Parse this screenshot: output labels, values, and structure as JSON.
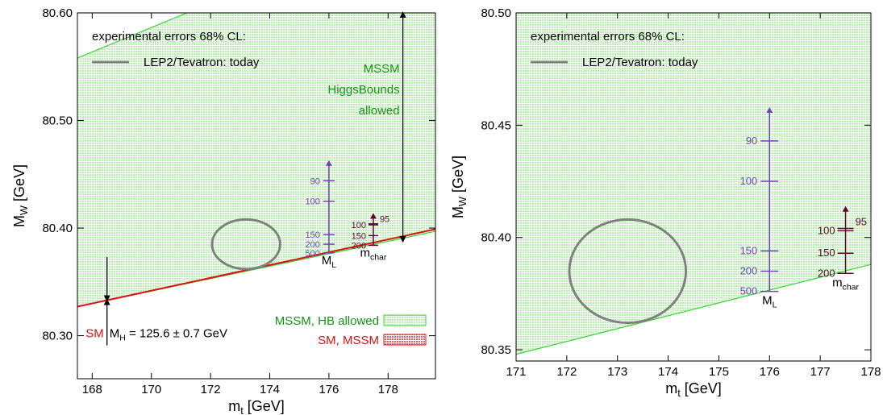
{
  "colors": {
    "allowed_fill": "#c8f2c0",
    "allowed_edge": "#30d830",
    "sm_band": "#e01010",
    "ellipse": "#808080",
    "purple": "#7040c0",
    "maroon": "#5a0a2a",
    "green_text": "#149414",
    "red_text": "#e01010"
  },
  "chart_data": [
    {
      "type": "area",
      "xlabel_main": "m",
      "xlabel_sub": "t",
      "xlabel_unit": "[GeV]",
      "ylabel_main": "M",
      "ylabel_sub": "W",
      "ylabel_unit": "[GeV]",
      "xlim": [
        167.5,
        179.6
      ],
      "ylim": [
        80.26,
        80.6
      ],
      "xticks": [
        {
          "v": 168,
          "l": "168"
        },
        {
          "v": 170,
          "l": "170"
        },
        {
          "v": 172,
          "l": "172"
        },
        {
          "v": 174,
          "l": "174"
        },
        {
          "v": 176,
          "l": "176"
        },
        {
          "v": 178,
          "l": "178"
        }
      ],
      "yticks": [
        {
          "v": 80.3,
          "l": "80.30"
        },
        {
          "v": 80.4,
          "l": "80.40"
        },
        {
          "v": 80.5,
          "l": "80.50"
        },
        {
          "v": 80.6,
          "l": "80.60"
        }
      ],
      "region_lower": [
        [
          167.5,
          80.327
        ],
        [
          179.6,
          80.397
        ]
      ],
      "region_upper": [
        [
          167.5,
          80.558
        ],
        [
          171.2,
          80.6
        ],
        [
          179.6,
          80.6
        ]
      ],
      "sm_band": [
        [
          167.5,
          80.327
        ],
        [
          179.6,
          80.399
        ]
      ],
      "ellipse": {
        "cx": 173.2,
        "cy": 80.385,
        "rx": 1.15,
        "ry": 0.023,
        "label": "LEP2/Tevatron: today"
      },
      "legend_title": "experimental errors 68% CL:",
      "ml_scale": {
        "x": 176.0,
        "label_main": "M",
        "label_sub": "L",
        "bottom": 80.377,
        "top": 80.463,
        "ticks": [
          {
            "v": 80.444,
            "l": "90"
          },
          {
            "v": 80.425,
            "l": "100"
          },
          {
            "v": 80.394,
            "l": "150"
          },
          {
            "v": 80.385,
            "l": "200"
          },
          {
            "v": 80.377,
            "l": "500"
          }
        ]
      },
      "mchar_scale": {
        "x": 177.5,
        "label_main": "m",
        "label_sub": "char",
        "bottom": 80.384,
        "top": 80.414,
        "ticks": [
          {
            "v": 80.404,
            "l": "95",
            "side": "right"
          },
          {
            "v": 80.403,
            "l": "100",
            "side": "left"
          },
          {
            "v": 80.393,
            "l": "150",
            "side": "left"
          },
          {
            "v": 80.384,
            "l": "200",
            "side": "left"
          }
        ]
      },
      "mssm_arrow": {
        "x": 178.5,
        "y1": 80.388,
        "y2": 80.6,
        "lines": [
          "MSSM",
          "HiggsBounds",
          "allowed"
        ]
      },
      "sm_arrow": {
        "x": 168.5,
        "y_top": 80.373,
        "y_tip": 80.333,
        "y_bottom": 80.3
      },
      "sm_label": "SM",
      "mh_label": "M",
      "mh_sub": "H",
      "mh_value": "= 125.6 ± 0.7 GeV",
      "legend_entries": [
        {
          "label": "MSSM, HB allowed",
          "kind": "green"
        },
        {
          "label": "SM, MSSM",
          "kind": "red"
        }
      ]
    },
    {
      "type": "area",
      "xlabel_main": "m",
      "xlabel_sub": "t",
      "xlabel_unit": "[GeV]",
      "ylabel_main": "M",
      "ylabel_sub": "W",
      "ylabel_unit": "[GeV]",
      "xlim": [
        171,
        178
      ],
      "ylim": [
        80.345,
        80.5
      ],
      "xticks": [
        {
          "v": 171,
          "l": "171"
        },
        {
          "v": 172,
          "l": "172"
        },
        {
          "v": 173,
          "l": "173"
        },
        {
          "v": 174,
          "l": "174"
        },
        {
          "v": 175,
          "l": "175"
        },
        {
          "v": 176,
          "l": "176"
        },
        {
          "v": 177,
          "l": "177"
        },
        {
          "v": 178,
          "l": "178"
        }
      ],
      "yticks": [
        {
          "v": 80.35,
          "l": "80.35"
        },
        {
          "v": 80.4,
          "l": "80.40"
        },
        {
          "v": 80.45,
          "l": "80.45"
        },
        {
          "v": 80.5,
          "l": "80.50"
        }
      ],
      "region_lower": [
        [
          171,
          80.348
        ],
        [
          178,
          80.388
        ]
      ],
      "region_upper": [
        [
          171,
          80.5
        ],
        [
          178,
          80.5
        ]
      ],
      "ellipse": {
        "cx": 173.2,
        "cy": 80.385,
        "rx": 1.15,
        "ry": 0.023,
        "label": "LEP2/Tevatron: today"
      },
      "legend_title": "experimental errors 68% CL:",
      "ml_scale": {
        "x": 176.0,
        "label_main": "M",
        "label_sub": "L",
        "bottom": 80.376,
        "top": 80.458,
        "ticks": [
          {
            "v": 80.443,
            "l": "90"
          },
          {
            "v": 80.425,
            "l": "100"
          },
          {
            "v": 80.394,
            "l": "150"
          },
          {
            "v": 80.385,
            "l": "200"
          },
          {
            "v": 80.376,
            "l": "500"
          }
        ]
      },
      "mchar_scale": {
        "x": 177.5,
        "label_main": "m",
        "label_sub": "char",
        "bottom": 80.384,
        "top": 80.414,
        "ticks": [
          {
            "v": 80.404,
            "l": "95",
            "side": "right"
          },
          {
            "v": 80.403,
            "l": "100",
            "side": "left"
          },
          {
            "v": 80.393,
            "l": "150",
            "side": "left"
          },
          {
            "v": 80.384,
            "l": "200",
            "side": "left"
          }
        ]
      }
    }
  ]
}
